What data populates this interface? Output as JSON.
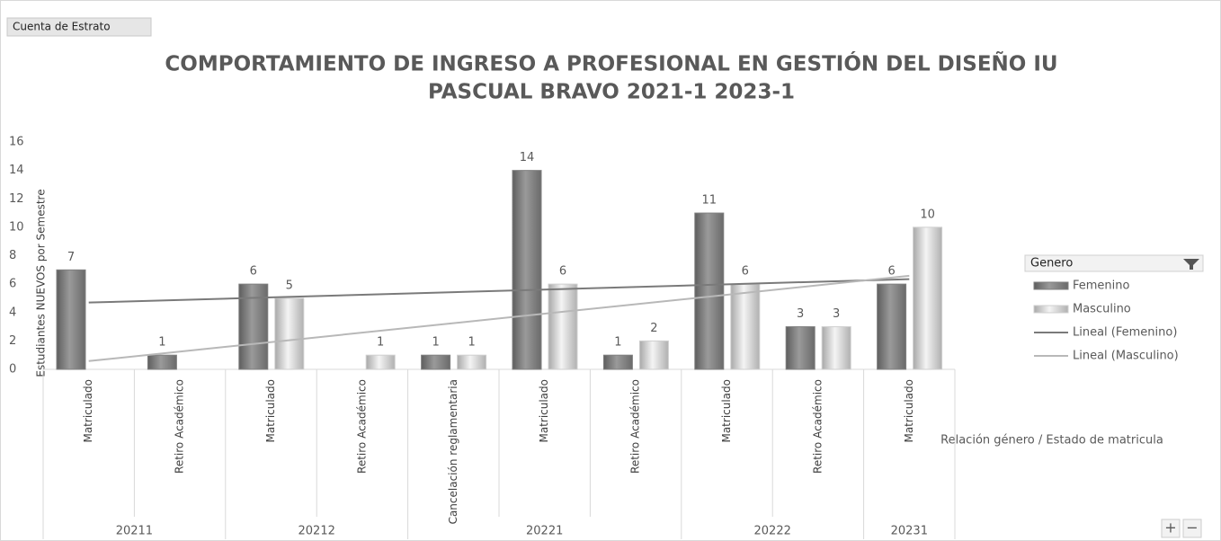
{
  "field_button": "Cuenta de Estrato",
  "chart_data": {
    "type": "bar",
    "title_lines": [
      "COMPORTAMIENTO DE INGRESO A PROFESIONAL EN GESTIÓN DEL DISEÑO IU",
      "PASCUAL BRAVO 2021-1 2023-1"
    ],
    "y_label": "Estudiantes NUEVOS por Semestre",
    "x_label": "Relación género / Estado de matricula",
    "groups": [
      {
        "label": "20211",
        "categories": [
          "Matriculado",
          "Retiro Académico"
        ]
      },
      {
        "label": "20212",
        "categories": [
          "Matriculado",
          "Retiro Académico"
        ]
      },
      {
        "label": "20221",
        "categories": [
          "Cancelación reglamentaria",
          "Matriculado",
          "Retiro Académico"
        ]
      },
      {
        "label": "20222",
        "categories": [
          "Matriculado",
          "Retiro Académico"
        ]
      },
      {
        "label": "20231",
        "categories": [
          "Matriculado"
        ]
      }
    ],
    "series": [
      {
        "name": "Femenino",
        "color": "#808080",
        "values": [
          7,
          1,
          6,
          null,
          1,
          14,
          1,
          11,
          3,
          6
        ]
      },
      {
        "name": "Masculino",
        "color": "#cfcfcf",
        "values": [
          null,
          null,
          5,
          1,
          1,
          6,
          2,
          6,
          3,
          10
        ]
      }
    ],
    "trendlines": [
      {
        "name": "Lineal (Femenino)",
        "series": 0,
        "color": "#7a7a7a"
      },
      {
        "name": "Lineal (Masculino)",
        "series": 1,
        "color": "#b8b8b8"
      }
    ],
    "legend_title": "Genero",
    "ylim": [
      0,
      16
    ],
    "yticks": [
      0,
      2,
      4,
      6,
      8,
      10,
      12,
      14,
      16
    ]
  }
}
